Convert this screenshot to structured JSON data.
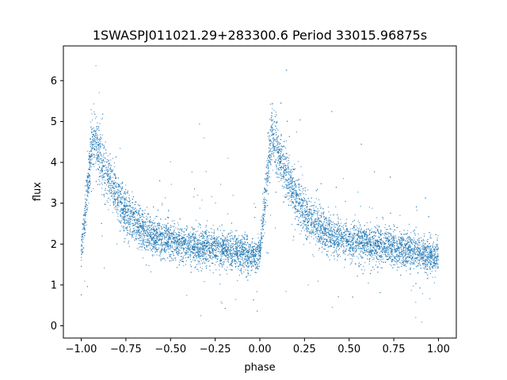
{
  "chart_data": {
    "type": "scatter",
    "title": "1SWASPJ011021.29+283300.6 Period 33015.96875s",
    "xlabel": "phase",
    "ylabel": "flux",
    "xlim": [
      -1.1,
      1.1
    ],
    "ylim": [
      -0.3,
      6.85
    ],
    "x_ticks": [
      -1.0,
      -0.75,
      -0.5,
      -0.25,
      0.0,
      0.25,
      0.5,
      0.75,
      1.0
    ],
    "x_tick_labels": [
      "−1.00",
      "−0.75",
      "−0.50",
      "−0.25",
      "0.00",
      "0.25",
      "0.50",
      "0.75",
      "1.00"
    ],
    "y_ticks": [
      0,
      1,
      2,
      3,
      4,
      5,
      6
    ],
    "y_tick_labels": [
      "0",
      "1",
      "2",
      "3",
      "4",
      "5",
      "6"
    ],
    "grid": false,
    "marker_color": "#1f77b4",
    "series": [
      {
        "phase_range": [
          -1.0,
          1.0
        ],
        "profile_x": [
          0.0,
          0.02,
          0.04,
          0.055,
          0.07,
          0.1,
          0.15,
          0.2,
          0.25,
          0.3,
          0.35,
          0.4,
          0.5,
          0.6,
          0.7,
          0.8,
          0.9,
          0.95,
          0.98,
          1.0
        ],
        "profile_y": [
          1.75,
          2.6,
          3.6,
          4.3,
          4.6,
          4.25,
          3.65,
          3.15,
          2.8,
          2.55,
          2.35,
          2.2,
          2.05,
          1.98,
          1.92,
          1.87,
          1.8,
          1.72,
          1.65,
          1.8
        ],
        "scatter_sigma": 0.22,
        "y_range_observed": [
          0.0,
          6.5
        ]
      }
    ]
  }
}
